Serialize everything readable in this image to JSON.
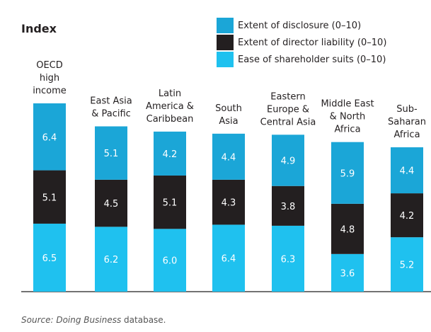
{
  "chart_data": {
    "type": "stacked_bar",
    "title": "Index",
    "categories": [
      "OECD\nhigh\nincome",
      "East Asia\n& Pacific",
      "Latin\nAmerica &\nCaribbean",
      "South\nAsia",
      "Eastern\nEurope &\nCentral Asia",
      "Middle East\n& North\nAfrica",
      "Sub-\nSaharan\nAfrica"
    ],
    "series": [
      {
        "name": "Ease of shareholder suits (0–10)",
        "color": "#1fc1ef",
        "values": [
          6.5,
          6.2,
          6.0,
          6.4,
          6.3,
          3.6,
          5.2
        ],
        "value_labels": [
          "6.5",
          "6.2",
          "6.0",
          "6.4",
          "6.3",
          "3.6",
          "5.2"
        ]
      },
      {
        "name": "Extent of director liability (0–10)",
        "color": "#231f20",
        "values": [
          5.1,
          4.5,
          5.1,
          4.3,
          3.8,
          4.8,
          4.2
        ],
        "value_labels": [
          "5.1",
          "4.5",
          "5.1",
          "4.3",
          "3.8",
          "4.8",
          "4.2"
        ]
      },
      {
        "name": "Extent of disclosure (0–10)",
        "color": "#1ba6d7",
        "values": [
          6.4,
          5.1,
          4.2,
          4.4,
          4.9,
          5.9,
          4.4
        ],
        "value_labels": [
          "6.4",
          "5.1",
          "4.2",
          "4.4",
          "4.9",
          "5.9",
          "4.4"
        ]
      }
    ],
    "source_italic": "Source: Doing Business",
    "source_rest": "database."
  }
}
